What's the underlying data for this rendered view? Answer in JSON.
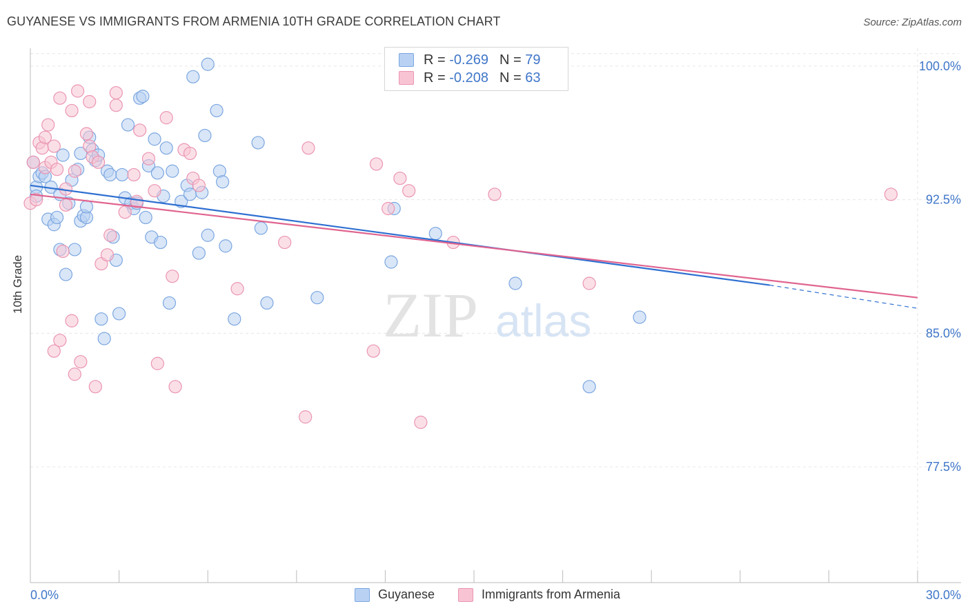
{
  "title": "GUYANESE VS IMMIGRANTS FROM ARMENIA 10TH GRADE CORRELATION CHART",
  "source": "Source: ZipAtlas.com",
  "watermark": {
    "zip": "ZIP",
    "atlas": "atlas"
  },
  "legend": [
    {
      "r_label": "R =",
      "r_value": "-0.269",
      "n_label": "N =",
      "n_value": "79"
    },
    {
      "r_label": "R =",
      "r_value": "-0.208",
      "n_label": "N =",
      "n_value": "63"
    }
  ],
  "colors": {
    "blue_fill": "#b9d2f3",
    "blue_stroke": "#7aa6e0",
    "blue_line": "#2e6fd1",
    "pink_fill": "#f8c4d4",
    "pink_stroke": "#ea94b1",
    "pink_line": "#e0648f",
    "axis_text": "#3f76c9",
    "grid": "#e6e6e6"
  },
  "chart_data": {
    "type": "scatter",
    "xlabel": "",
    "ylabel": "10th Grade",
    "xlim": [
      0,
      30
    ],
    "ylim": [
      71.0,
      101.0
    ],
    "x_tick_labels": [
      "0.0%",
      "30.0%"
    ],
    "y_ticks": [
      77.5,
      85.0,
      92.5,
      100.0
    ],
    "y_tick_labels": [
      "77.5%",
      "85.0%",
      "92.5%",
      "100.0%"
    ],
    "grid": true,
    "legend_position": "top-center",
    "series": [
      {
        "name": "Guyanese",
        "color": "blue",
        "trend": {
          "x0": 0.0,
          "y0": 93.3,
          "x1": 25.0,
          "y1": 87.7,
          "dash_to": 30.0,
          "dash_y": 86.4
        },
        "points": [
          [
            0.1,
            94.6
          ],
          [
            0.2,
            93.2
          ],
          [
            0.2,
            92.7
          ],
          [
            0.3,
            93.8
          ],
          [
            0.4,
            94.0
          ],
          [
            0.5,
            93.8
          ],
          [
            0.6,
            91.4
          ],
          [
            0.7,
            93.2
          ],
          [
            0.8,
            91.1
          ],
          [
            0.9,
            91.5
          ],
          [
            1.0,
            92.8
          ],
          [
            1.0,
            89.7
          ],
          [
            1.1,
            95.0
          ],
          [
            1.2,
            88.3
          ],
          [
            1.3,
            92.3
          ],
          [
            1.4,
            93.6
          ],
          [
            1.5,
            89.7
          ],
          [
            1.6,
            94.2
          ],
          [
            1.7,
            95.1
          ],
          [
            1.7,
            91.3
          ],
          [
            1.8,
            91.6
          ],
          [
            1.9,
            91.5
          ],
          [
            1.9,
            92.1
          ],
          [
            2.0,
            96.0
          ],
          [
            2.1,
            95.3
          ],
          [
            2.2,
            94.7
          ],
          [
            2.3,
            95.0
          ],
          [
            2.4,
            85.8
          ],
          [
            2.5,
            84.7
          ],
          [
            2.6,
            94.1
          ],
          [
            2.7,
            93.9
          ],
          [
            2.8,
            90.4
          ],
          [
            2.9,
            89.1
          ],
          [
            3.0,
            86.1
          ],
          [
            3.1,
            93.9
          ],
          [
            3.2,
            92.6
          ],
          [
            3.3,
            96.7
          ],
          [
            3.4,
            92.3
          ],
          [
            3.5,
            92.0
          ],
          [
            3.6,
            92.3
          ],
          [
            3.7,
            98.2
          ],
          [
            3.8,
            98.3
          ],
          [
            3.9,
            91.5
          ],
          [
            4.0,
            94.4
          ],
          [
            4.1,
            90.4
          ],
          [
            4.2,
            95.9
          ],
          [
            4.3,
            94.0
          ],
          [
            4.4,
            90.1
          ],
          [
            4.5,
            92.7
          ],
          [
            4.6,
            95.4
          ],
          [
            4.7,
            86.7
          ],
          [
            4.8,
            94.1
          ],
          [
            5.1,
            92.4
          ],
          [
            5.3,
            93.3
          ],
          [
            5.4,
            92.8
          ],
          [
            5.5,
            99.4
          ],
          [
            5.7,
            89.5
          ],
          [
            5.8,
            92.9
          ],
          [
            5.9,
            96.1
          ],
          [
            6.0,
            100.1
          ],
          [
            6.0,
            90.5
          ],
          [
            6.3,
            97.5
          ],
          [
            6.4,
            94.1
          ],
          [
            6.5,
            93.5
          ],
          [
            6.6,
            89.9
          ],
          [
            6.9,
            85.8
          ],
          [
            7.7,
            95.7
          ],
          [
            7.8,
            90.9
          ],
          [
            8.0,
            86.7
          ],
          [
            9.7,
            87.0
          ],
          [
            12.3,
            92.0
          ],
          [
            12.2,
            89.0
          ],
          [
            13.7,
            90.6
          ],
          [
            16.4,
            87.8
          ],
          [
            17.1,
            99.8
          ],
          [
            18.9,
            82.0
          ],
          [
            20.6,
            85.9
          ]
        ]
      },
      {
        "name": "Immigrants from Armenia",
        "color": "pink",
        "trend": {
          "x0": 0.0,
          "y0": 92.8,
          "x1": 30.0,
          "y1": 87.0
        },
        "points": [
          [
            0.0,
            92.3
          ],
          [
            0.1,
            94.6
          ],
          [
            0.2,
            92.5
          ],
          [
            0.3,
            95.7
          ],
          [
            0.4,
            95.4
          ],
          [
            0.5,
            96.0
          ],
          [
            0.5,
            94.3
          ],
          [
            0.6,
            96.7
          ],
          [
            0.7,
            94.6
          ],
          [
            0.8,
            84.0
          ],
          [
            0.8,
            95.5
          ],
          [
            0.9,
            94.2
          ],
          [
            1.0,
            98.2
          ],
          [
            1.0,
            84.6
          ],
          [
            1.1,
            89.6
          ],
          [
            1.2,
            92.2
          ],
          [
            1.2,
            93.1
          ],
          [
            1.4,
            97.5
          ],
          [
            1.4,
            85.7
          ],
          [
            1.5,
            94.1
          ],
          [
            1.5,
            82.7
          ],
          [
            1.6,
            98.6
          ],
          [
            1.7,
            83.4
          ],
          [
            1.9,
            96.2
          ],
          [
            2.0,
            98.0
          ],
          [
            2.0,
            95.5
          ],
          [
            2.1,
            94.9
          ],
          [
            2.2,
            82.0
          ],
          [
            2.3,
            94.6
          ],
          [
            2.4,
            88.9
          ],
          [
            2.6,
            89.4
          ],
          [
            2.7,
            90.5
          ],
          [
            2.9,
            97.8
          ],
          [
            2.9,
            98.5
          ],
          [
            3.2,
            91.8
          ],
          [
            3.5,
            93.9
          ],
          [
            3.6,
            92.4
          ],
          [
            3.7,
            96.4
          ],
          [
            4.0,
            94.8
          ],
          [
            4.2,
            93.0
          ],
          [
            4.3,
            83.3
          ],
          [
            4.6,
            97.1
          ],
          [
            4.8,
            88.2
          ],
          [
            4.9,
            82.0
          ],
          [
            5.2,
            95.3
          ],
          [
            5.4,
            95.1
          ],
          [
            5.5,
            93.7
          ],
          [
            5.7,
            93.3
          ],
          [
            7.0,
            87.5
          ],
          [
            8.6,
            90.1
          ],
          [
            9.3,
            80.3
          ],
          [
            9.4,
            95.4
          ],
          [
            11.6,
            84.0
          ],
          [
            11.7,
            94.5
          ],
          [
            12.1,
            92.0
          ],
          [
            12.5,
            93.7
          ],
          [
            12.8,
            93.0
          ],
          [
            13.2,
            80.0
          ],
          [
            14.3,
            90.1
          ],
          [
            15.7,
            92.8
          ],
          [
            18.9,
            87.8
          ],
          [
            29.1,
            92.8
          ]
        ]
      }
    ]
  },
  "bottom_legend": [
    "Guyanese",
    "Immigrants from Armenia"
  ]
}
